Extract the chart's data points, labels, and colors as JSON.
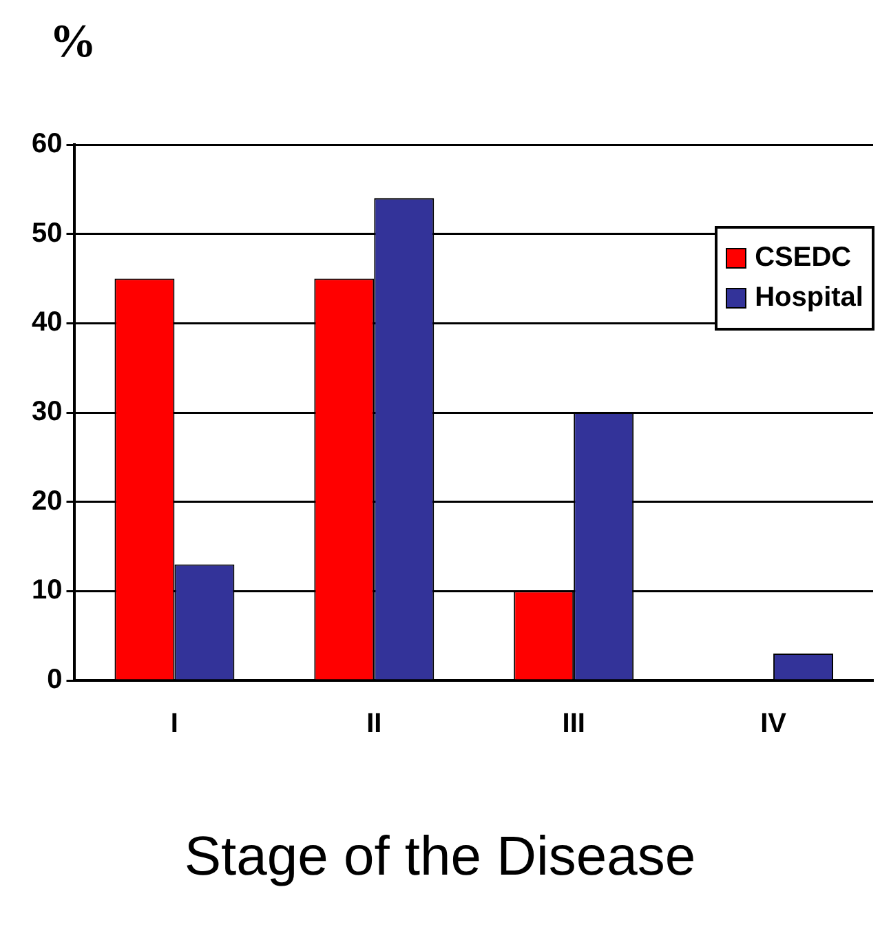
{
  "chart_data": {
    "type": "bar",
    "ylabel": "%",
    "xlabel": "Stage of the Disease",
    "categories": [
      "I",
      "II",
      "III",
      "IV"
    ],
    "series": [
      {
        "name": "CSEDC",
        "color": "#ff0000",
        "values": [
          45,
          45,
          10,
          0
        ]
      },
      {
        "name": "Hospital",
        "color": "#333399",
        "values": [
          13,
          54,
          30,
          3
        ]
      }
    ],
    "ylim": [
      0,
      60
    ],
    "yticks": [
      0,
      10,
      20,
      30,
      40,
      50,
      60
    ],
    "grid": "y",
    "legend": "top right"
  }
}
